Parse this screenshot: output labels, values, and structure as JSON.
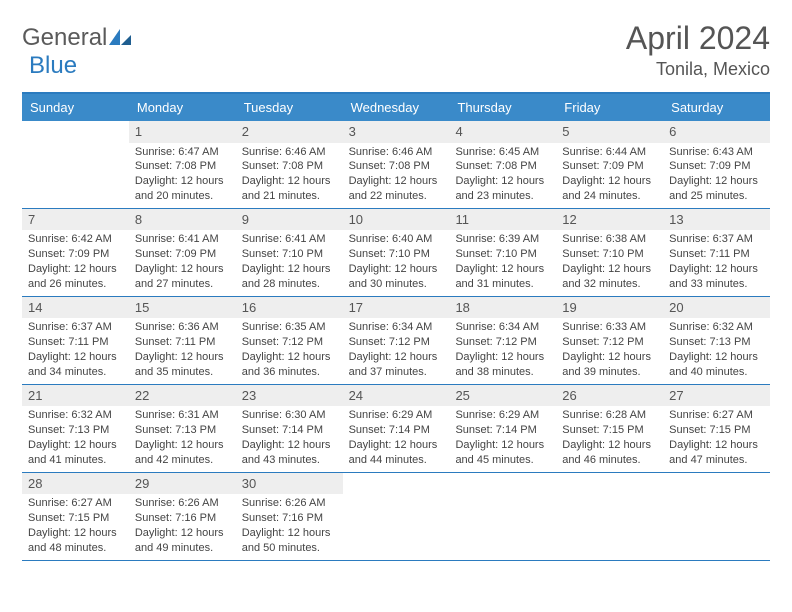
{
  "brand": {
    "general": "General",
    "blue": "Blue"
  },
  "title": "April 2024",
  "location": "Tonila, Mexico",
  "colors": {
    "header_bg": "#3a8ac9",
    "header_border": "#2b7bbf",
    "daynum_bg": "#eeeeee",
    "text": "#444444"
  },
  "day_names": [
    "Sunday",
    "Monday",
    "Tuesday",
    "Wednesday",
    "Thursday",
    "Friday",
    "Saturday"
  ],
  "weeks": [
    [
      null,
      {
        "n": "1",
        "sr": "6:47 AM",
        "ss": "7:08 PM",
        "dl": "12 hours and 20 minutes."
      },
      {
        "n": "2",
        "sr": "6:46 AM",
        "ss": "7:08 PM",
        "dl": "12 hours and 21 minutes."
      },
      {
        "n": "3",
        "sr": "6:46 AM",
        "ss": "7:08 PM",
        "dl": "12 hours and 22 minutes."
      },
      {
        "n": "4",
        "sr": "6:45 AM",
        "ss": "7:08 PM",
        "dl": "12 hours and 23 minutes."
      },
      {
        "n": "5",
        "sr": "6:44 AM",
        "ss": "7:09 PM",
        "dl": "12 hours and 24 minutes."
      },
      {
        "n": "6",
        "sr": "6:43 AM",
        "ss": "7:09 PM",
        "dl": "12 hours and 25 minutes."
      }
    ],
    [
      {
        "n": "7",
        "sr": "6:42 AM",
        "ss": "7:09 PM",
        "dl": "12 hours and 26 minutes."
      },
      {
        "n": "8",
        "sr": "6:41 AM",
        "ss": "7:09 PM",
        "dl": "12 hours and 27 minutes."
      },
      {
        "n": "9",
        "sr": "6:41 AM",
        "ss": "7:10 PM",
        "dl": "12 hours and 28 minutes."
      },
      {
        "n": "10",
        "sr": "6:40 AM",
        "ss": "7:10 PM",
        "dl": "12 hours and 30 minutes."
      },
      {
        "n": "11",
        "sr": "6:39 AM",
        "ss": "7:10 PM",
        "dl": "12 hours and 31 minutes."
      },
      {
        "n": "12",
        "sr": "6:38 AM",
        "ss": "7:10 PM",
        "dl": "12 hours and 32 minutes."
      },
      {
        "n": "13",
        "sr": "6:37 AM",
        "ss": "7:11 PM",
        "dl": "12 hours and 33 minutes."
      }
    ],
    [
      {
        "n": "14",
        "sr": "6:37 AM",
        "ss": "7:11 PM",
        "dl": "12 hours and 34 minutes."
      },
      {
        "n": "15",
        "sr": "6:36 AM",
        "ss": "7:11 PM",
        "dl": "12 hours and 35 minutes."
      },
      {
        "n": "16",
        "sr": "6:35 AM",
        "ss": "7:12 PM",
        "dl": "12 hours and 36 minutes."
      },
      {
        "n": "17",
        "sr": "6:34 AM",
        "ss": "7:12 PM",
        "dl": "12 hours and 37 minutes."
      },
      {
        "n": "18",
        "sr": "6:34 AM",
        "ss": "7:12 PM",
        "dl": "12 hours and 38 minutes."
      },
      {
        "n": "19",
        "sr": "6:33 AM",
        "ss": "7:12 PM",
        "dl": "12 hours and 39 minutes."
      },
      {
        "n": "20",
        "sr": "6:32 AM",
        "ss": "7:13 PM",
        "dl": "12 hours and 40 minutes."
      }
    ],
    [
      {
        "n": "21",
        "sr": "6:32 AM",
        "ss": "7:13 PM",
        "dl": "12 hours and 41 minutes."
      },
      {
        "n": "22",
        "sr": "6:31 AM",
        "ss": "7:13 PM",
        "dl": "12 hours and 42 minutes."
      },
      {
        "n": "23",
        "sr": "6:30 AM",
        "ss": "7:14 PM",
        "dl": "12 hours and 43 minutes."
      },
      {
        "n": "24",
        "sr": "6:29 AM",
        "ss": "7:14 PM",
        "dl": "12 hours and 44 minutes."
      },
      {
        "n": "25",
        "sr": "6:29 AM",
        "ss": "7:14 PM",
        "dl": "12 hours and 45 minutes."
      },
      {
        "n": "26",
        "sr": "6:28 AM",
        "ss": "7:15 PM",
        "dl": "12 hours and 46 minutes."
      },
      {
        "n": "27",
        "sr": "6:27 AM",
        "ss": "7:15 PM",
        "dl": "12 hours and 47 minutes."
      }
    ],
    [
      {
        "n": "28",
        "sr": "6:27 AM",
        "ss": "7:15 PM",
        "dl": "12 hours and 48 minutes."
      },
      {
        "n": "29",
        "sr": "6:26 AM",
        "ss": "7:16 PM",
        "dl": "12 hours and 49 minutes."
      },
      {
        "n": "30",
        "sr": "6:26 AM",
        "ss": "7:16 PM",
        "dl": "12 hours and 50 minutes."
      },
      null,
      null,
      null,
      null
    ]
  ],
  "labels": {
    "sunrise": "Sunrise: ",
    "sunset": "Sunset: ",
    "daylight": "Daylight: "
  }
}
